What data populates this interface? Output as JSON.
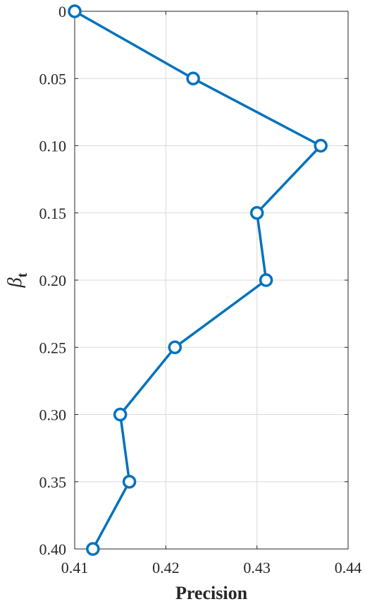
{
  "chart_data": {
    "type": "line",
    "title": "",
    "xlabel": "Precision",
    "ylabel": {
      "symbol": "β",
      "subscript": "t"
    },
    "xlim": [
      0.41,
      0.44
    ],
    "ylim": [
      0,
      0.4
    ],
    "y_reversed": true,
    "grid": true,
    "xticks": [
      {
        "value": 0.41,
        "label": "0.41"
      },
      {
        "value": 0.42,
        "label": "0.42"
      },
      {
        "value": 0.43,
        "label": "0.43"
      },
      {
        "value": 0.44,
        "label": "0.44"
      }
    ],
    "yticks": [
      {
        "value": 0,
        "label": "0"
      },
      {
        "value": 0.05,
        "label": "0.05"
      },
      {
        "value": 0.1,
        "label": "0.10"
      },
      {
        "value": 0.15,
        "label": "0.15"
      },
      {
        "value": 0.2,
        "label": "0.20"
      },
      {
        "value": 0.25,
        "label": "0.25"
      },
      {
        "value": 0.3,
        "label": "0.30"
      },
      {
        "value": 0.35,
        "label": "0.35"
      },
      {
        "value": 0.4,
        "label": "0.40"
      }
    ],
    "series": [
      {
        "color": "#0072BD",
        "marker": "circle",
        "points": [
          {
            "x": 0.41,
            "y": 0
          },
          {
            "x": 0.423,
            "y": 0.05
          },
          {
            "x": 0.437,
            "y": 0.1
          },
          {
            "x": 0.43,
            "y": 0.15
          },
          {
            "x": 0.431,
            "y": 0.2
          },
          {
            "x": 0.421,
            "y": 0.25
          },
          {
            "x": 0.415,
            "y": 0.3
          },
          {
            "x": 0.416,
            "y": 0.35
          },
          {
            "x": 0.412,
            "y": 0.4
          }
        ]
      }
    ]
  }
}
